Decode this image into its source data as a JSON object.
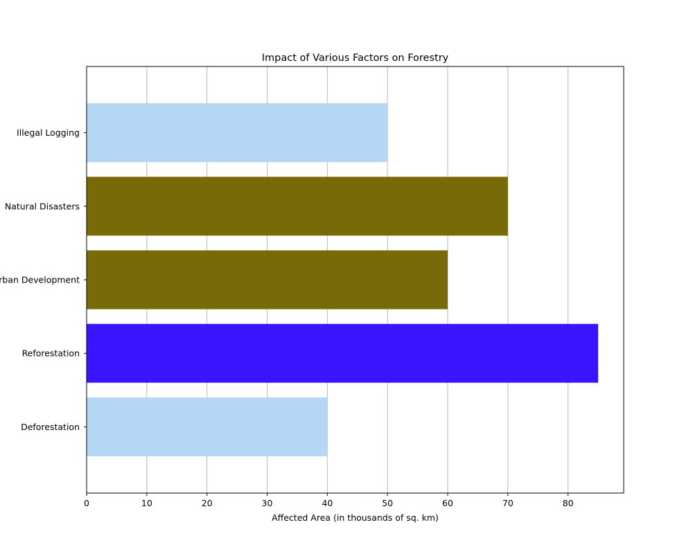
{
  "chart_data": {
    "type": "bar",
    "orientation": "horizontal",
    "title": "Impact of Various Factors on Forestry",
    "xlabel": "Affected Area (in thousands of sq. km)",
    "ylabel": "",
    "xlim": [
      0,
      89.25
    ],
    "xticks": [
      0,
      10,
      20,
      30,
      40,
      50,
      60,
      70,
      80
    ],
    "grid": {
      "x": true,
      "y": false
    },
    "categories": [
      "Deforestation",
      "Reforestation",
      "Urban Development",
      "Natural Disasters",
      "Illegal Logging"
    ],
    "values": [
      40,
      85,
      60,
      70,
      50
    ],
    "colors": [
      "#b5d7f5",
      "#3916ff",
      "#786a08",
      "#786a08",
      "#b5d7f5"
    ]
  }
}
